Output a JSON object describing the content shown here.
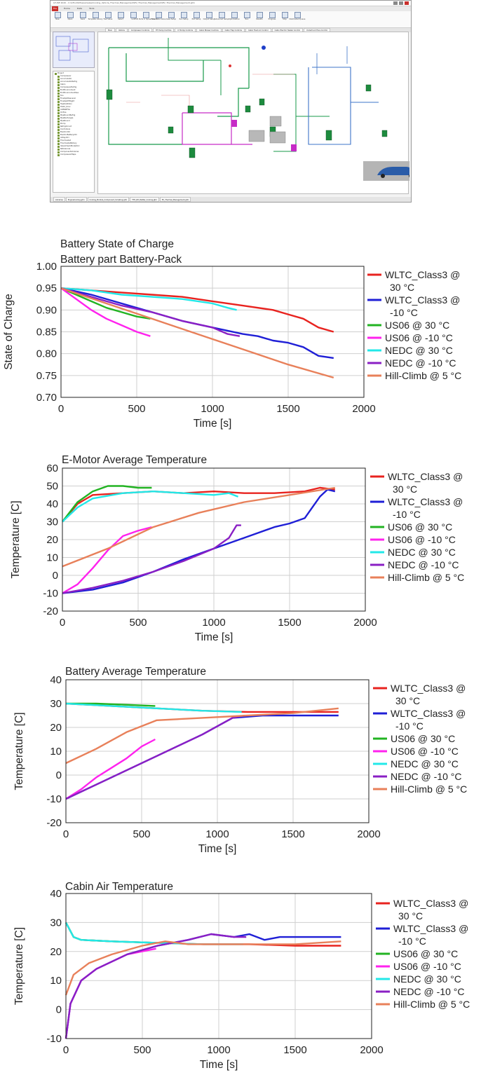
{
  "app": {
    "title": "GT-ISE 2020 - C:\\GTIv2020\\examples\\Cooling_Vehicle_Thermal_Management\\EV_Thermal_Management\\EV_Thermal_Management.gtm",
    "menu_tabs": [
      "File",
      "Home",
      "Data",
      "Tools"
    ],
    "ribbon_buttons": [
      "New",
      "Open",
      "Save",
      "Template Library",
      "Fast Value",
      "Select",
      "Link",
      "Edit Parts in Spreadsheet",
      "Flow State Value",
      "Case Setup",
      "Run Setup",
      "Plot Setup",
      "Output Setup",
      "Advanced Setup",
      "Optimization",
      "Run",
      "Results",
      "Progress",
      "Stop",
      "Distributed Queue"
    ],
    "doc_tabs": [
      "Main",
      "Vehicle",
      "Compressor Controls",
      "HT Pump Controls",
      "LT Pump Controls",
      "Cabin Blower Controls",
      "Cabin Flap Controls",
      "Cabin Fresh Air Control",
      "Cabin Electric Heater Control",
      "Underhood Fans Control"
    ],
    "tree_items": [
      "Project",
      "Compressor",
      "Accumulator",
      "AccumulatorRefrig",
      "Cabin",
      "CompressorRefrig",
      "EndEnvironment",
      "EndEnvironmentSse",
      "Fan",
      "FlowSplitGeneral",
      "FlowSplitTRight",
      "HeatAddition",
      "HVAC_Door",
      "InitBattFile",
      "Orifice",
      "PipeRoundRefrig",
      "PipeRectangle",
      "PipeRound",
      "Pump",
      "RefrigCircuit",
      "Controllers",
      "ElectricCtrl",
      "ElectricBatteryCtrl",
      "InPlayCtrl",
      "Thermostat",
      "ThermostatRotary",
      "ValveCheckModelCirc",
      "References",
      "ComponentLibraries",
      "CompressorMaps"
    ],
    "bottom_tabs": [
      "Libraries",
      "EngineCooling.gtm",
      "Cooling_Module_Component_Scripting.gtm",
      "TTH_RH_Matter_Cooling.gtm",
      "EV_Thermal_Management.gtm"
    ]
  },
  "legend_entries": [
    {
      "line1": "WLTC_Class3 @",
      "line2": "30 °C",
      "color": "#e8231f"
    },
    {
      "line1": "WLTC_Class3 @",
      "line2": "-10 °C",
      "color": "#1f1fd6"
    },
    {
      "line1": "US06 @ 30 °C",
      "line2": "",
      "color": "#22b322"
    },
    {
      "line1": "US06 @ -10 °C",
      "line2": "",
      "color": "#ff22ee"
    },
    {
      "line1": "NEDC @ 30 °C",
      "line2": "",
      "color": "#22e8e8"
    },
    {
      "line1": "NEDC @ -10 °C",
      "line2": "",
      "color": "#8a1fc4"
    },
    {
      "line1": "Hill-Climb @ 5 °C",
      "line2": "",
      "color": "#e8805a"
    }
  ],
  "chart_data": [
    {
      "type": "line",
      "title": "Battery State of Charge",
      "subtitle": "Battery part Battery-Pack",
      "xlabel": "Time [s]",
      "ylabel": "State of Charge",
      "xlim": [
        0,
        2000
      ],
      "ylim": [
        0.7,
        1.0
      ],
      "xticks": [
        0,
        500,
        1000,
        1500,
        2000
      ],
      "yticks": [
        0.7,
        0.75,
        0.8,
        0.85,
        0.9,
        0.95,
        1.0
      ],
      "ytick_labels": [
        "0.70",
        "0.75",
        "0.80",
        "0.85",
        "0.90",
        "0.95",
        "1.00"
      ],
      "grid": true,
      "legend": "right",
      "series": [
        {
          "name": "WLTC_Class3 @ 30 °C",
          "x": [
            0,
            200,
            400,
            600,
            800,
            1000,
            1200,
            1400,
            1500,
            1600,
            1700,
            1800
          ],
          "y": [
            0.95,
            0.945,
            0.94,
            0.935,
            0.93,
            0.92,
            0.91,
            0.9,
            0.89,
            0.88,
            0.86,
            0.85
          ]
        },
        {
          "name": "WLTC_Class3 @ -10 °C",
          "x": [
            0,
            200,
            400,
            600,
            800,
            1000,
            1200,
            1300,
            1400,
            1500,
            1600,
            1700,
            1800
          ],
          "y": [
            0.95,
            0.935,
            0.915,
            0.895,
            0.875,
            0.86,
            0.845,
            0.84,
            0.83,
            0.825,
            0.815,
            0.795,
            0.79
          ]
        },
        {
          "name": "US06 @ 30 °C",
          "x": [
            0,
            100,
            200,
            300,
            400,
            500,
            590
          ],
          "y": [
            0.95,
            0.935,
            0.92,
            0.905,
            0.895,
            0.885,
            0.88
          ]
        },
        {
          "name": "US06 @ -10 °C",
          "x": [
            0,
            100,
            200,
            300,
            400,
            500,
            590
          ],
          "y": [
            0.95,
            0.925,
            0.9,
            0.88,
            0.865,
            0.85,
            0.84
          ]
        },
        {
          "name": "NEDC @ 30 °C",
          "x": [
            0,
            200,
            400,
            600,
            800,
            1000,
            1100,
            1160
          ],
          "y": [
            0.95,
            0.945,
            0.935,
            0.93,
            0.925,
            0.915,
            0.905,
            0.9
          ]
        },
        {
          "name": "NEDC @ -10 °C",
          "x": [
            0,
            200,
            400,
            600,
            800,
            1000,
            1100,
            1180
          ],
          "y": [
            0.95,
            0.93,
            0.91,
            0.895,
            0.875,
            0.86,
            0.845,
            0.84
          ]
        },
        {
          "name": "Hill-Climb @ 5 °C",
          "x": [
            0,
            300,
            600,
            900,
            1200,
            1500,
            1800
          ],
          "y": [
            0.95,
            0.915,
            0.88,
            0.845,
            0.81,
            0.775,
            0.745
          ]
        }
      ]
    },
    {
      "type": "line",
      "title": "E-Motor Average Temperature",
      "subtitle": "",
      "xlabel": "Time [s]",
      "ylabel": "Temperature [C]",
      "xlim": [
        0,
        2000
      ],
      "ylim": [
        -20,
        60
      ],
      "xticks": [
        0,
        500,
        1000,
        1500,
        2000
      ],
      "yticks": [
        -20,
        -10,
        0,
        10,
        20,
        30,
        40,
        50,
        60
      ],
      "ytick_labels": [
        "-20",
        "-10",
        "0",
        "10",
        "20",
        "30",
        "40",
        "50",
        "60"
      ],
      "grid": true,
      "legend": "right",
      "series": [
        {
          "name": "WLTC_Class3 @ 30 °C",
          "x": [
            0,
            100,
            200,
            400,
            600,
            800,
            1000,
            1200,
            1400,
            1600,
            1700,
            1800
          ],
          "y": [
            30,
            40,
            45,
            46,
            47,
            46,
            47,
            46,
            46,
            47,
            49,
            48
          ]
        },
        {
          "name": "WLTC_Class3 @ -10 °C",
          "x": [
            0,
            200,
            400,
            600,
            800,
            1000,
            1200,
            1400,
            1500,
            1600,
            1650,
            1700,
            1750,
            1800
          ],
          "y": [
            -10,
            -8,
            -4,
            2,
            9,
            15,
            21,
            27,
            29,
            32,
            38,
            44,
            48,
            47
          ]
        },
        {
          "name": "US06 @ 30 °C",
          "x": [
            0,
            100,
            200,
            300,
            400,
            500,
            590
          ],
          "y": [
            30,
            41,
            47,
            50,
            50,
            49,
            49
          ]
        },
        {
          "name": "US06 @ -10 °C",
          "x": [
            0,
            100,
            200,
            300,
            400,
            500,
            590
          ],
          "y": [
            -10,
            -5,
            4,
            14,
            22,
            25,
            27
          ]
        },
        {
          "name": "NEDC @ 30 °C",
          "x": [
            0,
            100,
            200,
            400,
            600,
            800,
            1000,
            1100,
            1160
          ],
          "y": [
            30,
            38,
            43,
            46,
            47,
            46,
            45,
            46,
            44
          ]
        },
        {
          "name": "NEDC @ -10 °C",
          "x": [
            0,
            200,
            400,
            600,
            800,
            1000,
            1100,
            1150,
            1180
          ],
          "y": [
            -10,
            -7,
            -3,
            2,
            8,
            15,
            21,
            28,
            28
          ]
        },
        {
          "name": "Hill-Climb @ 5 °C",
          "x": [
            0,
            300,
            600,
            900,
            1200,
            1500,
            1800
          ],
          "y": [
            5,
            15,
            27,
            35,
            41,
            45,
            49
          ]
        }
      ]
    },
    {
      "type": "line",
      "title": "Battery Average Temperature",
      "subtitle": "",
      "xlabel": "Time [s]",
      "ylabel": "Temperature [C]",
      "xlim": [
        0,
        2000
      ],
      "ylim": [
        -20,
        40
      ],
      "xticks": [
        0,
        500,
        1000,
        1500,
        2000
      ],
      "yticks": [
        -20,
        -10,
        0,
        10,
        20,
        30,
        40
      ],
      "ytick_labels": [
        "-20",
        "-10",
        "0",
        "10",
        "20",
        "30",
        "40"
      ],
      "grid": true,
      "legend": "right",
      "series": [
        {
          "name": "WLTC_Class3 @ 30 °C",
          "x": [
            0,
            300,
            600,
            900,
            1200,
            1500,
            1800
          ],
          "y": [
            30,
            29,
            28,
            27,
            26.5,
            26.5,
            26.5
          ]
        },
        {
          "name": "WLTC_Class3 @ -10 °C",
          "x": [
            0,
            300,
            600,
            900,
            1100,
            1300,
            1500,
            1800
          ],
          "y": [
            -10,
            -1,
            8,
            17,
            24,
            25,
            25,
            25
          ]
        },
        {
          "name": "US06 @ 30 °C",
          "x": [
            0,
            200,
            400,
            590
          ],
          "y": [
            30,
            30,
            29.5,
            29
          ]
        },
        {
          "name": "US06 @ -10 °C",
          "x": [
            0,
            100,
            200,
            300,
            400,
            500,
            590
          ],
          "y": [
            -10,
            -6,
            -1,
            3,
            7,
            12,
            15
          ]
        },
        {
          "name": "NEDC @ 30 °C",
          "x": [
            0,
            300,
            600,
            900,
            1160
          ],
          "y": [
            30,
            29,
            28,
            27,
            26.5
          ]
        },
        {
          "name": "NEDC @ -10 °C",
          "x": [
            0,
            300,
            600,
            900,
            1100,
            1180
          ],
          "y": [
            -10,
            -1,
            8,
            17,
            24,
            25
          ]
        },
        {
          "name": "Hill-Climb @ 5 °C",
          "x": [
            0,
            200,
            400,
            600,
            900,
            1200,
            1500,
            1800
          ],
          "y": [
            5,
            11,
            18,
            23,
            24,
            25,
            26,
            28
          ]
        }
      ]
    },
    {
      "type": "line",
      "title": "Cabin Air Temperature",
      "subtitle": "",
      "xlabel": "Time [s]",
      "ylabel": "Temperature [C]",
      "xlim": [
        0,
        2000
      ],
      "ylim": [
        -10,
        40
      ],
      "xticks": [
        0,
        500,
        1000,
        1500,
        2000
      ],
      "yticks": [
        -10,
        0,
        10,
        20,
        30,
        40
      ],
      "ytick_labels": [
        "-10",
        "0",
        "10",
        "20",
        "30",
        "40"
      ],
      "grid": true,
      "legend": "right",
      "series": [
        {
          "name": "WLTC_Class3 @ 30 °C",
          "x": [
            0,
            50,
            100,
            300,
            600,
            900,
            1200,
            1500,
            1800
          ],
          "y": [
            30,
            25,
            24,
            23.5,
            23,
            22.5,
            22.5,
            22,
            22
          ]
        },
        {
          "name": "WLTC_Class3 @ -10 °C",
          "x": [
            0,
            30,
            100,
            200,
            400,
            600,
            800,
            950,
            1100,
            1200,
            1300,
            1400,
            1500,
            1800
          ],
          "y": [
            -10,
            2,
            10,
            14,
            19,
            22,
            24,
            26,
            25,
            26,
            24,
            25,
            25,
            25
          ]
        },
        {
          "name": "US06 @ 30 °C",
          "x": [
            0,
            50,
            100,
            300,
            590
          ],
          "y": [
            30,
            25,
            24,
            23.5,
            23
          ]
        },
        {
          "name": "US06 @ -10 °C",
          "x": [
            0,
            30,
            100,
            200,
            400,
            590
          ],
          "y": [
            -10,
            2,
            10,
            14,
            19,
            21
          ]
        },
        {
          "name": "NEDC @ 30 °C",
          "x": [
            0,
            50,
            100,
            300,
            600,
            900,
            1160
          ],
          "y": [
            30,
            25,
            24,
            23.5,
            23,
            22.5,
            22.5
          ]
        },
        {
          "name": "NEDC @ -10 °C",
          "x": [
            0,
            30,
            100,
            200,
            400,
            600,
            800,
            950,
            1100,
            1180
          ],
          "y": [
            -10,
            2,
            10,
            14,
            19,
            22,
            24,
            26,
            25,
            25
          ]
        },
        {
          "name": "Hill-Climb @ 5 °C",
          "x": [
            0,
            50,
            150,
            300,
            500,
            650,
            800,
            1000,
            1200,
            1500,
            1800
          ],
          "y": [
            5,
            12,
            16,
            19,
            22,
            23.5,
            22.5,
            22.5,
            22.5,
            22.5,
            23.5
          ]
        }
      ]
    }
  ]
}
